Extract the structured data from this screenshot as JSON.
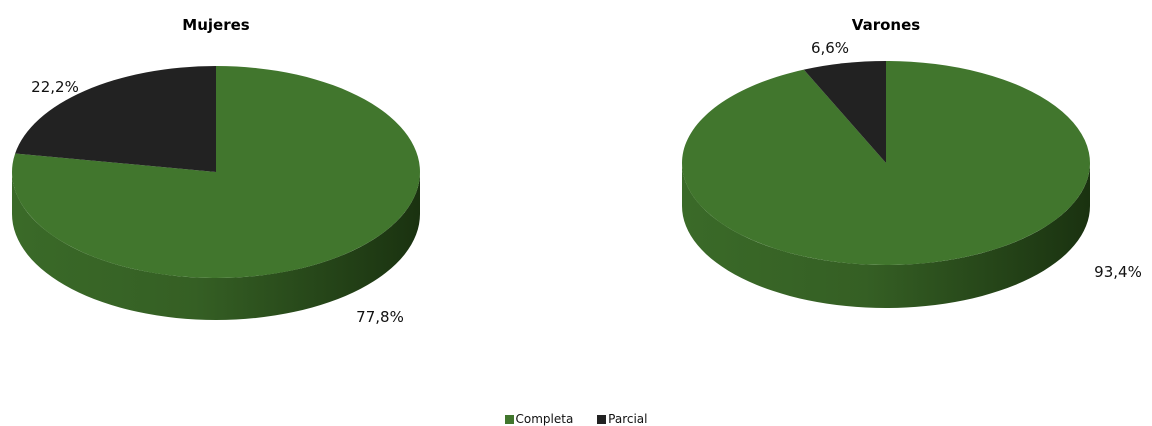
{
  "colors": {
    "completa": "#41762d",
    "completa_side": "#2a4d1c",
    "parcial": "#222222",
    "parcial_side": "#111111"
  },
  "legend": {
    "items": [
      {
        "label": "Completa",
        "color": "#41762d"
      },
      {
        "label": "Parcial",
        "color": "#222222"
      }
    ]
  },
  "chart_data": [
    {
      "type": "pie",
      "title": "Mujeres",
      "slices": [
        {
          "category": "Completa",
          "value": 77.8,
          "label": "77,8%"
        },
        {
          "category": "Parcial",
          "value": 22.2,
          "label": "22,2%"
        }
      ]
    },
    {
      "type": "pie",
      "title": "Varones",
      "slices": [
        {
          "category": "Completa",
          "value": 93.4,
          "label": "93,4%"
        },
        {
          "category": "Parcial",
          "value": 6.6,
          "label": "6,6%"
        }
      ]
    }
  ]
}
